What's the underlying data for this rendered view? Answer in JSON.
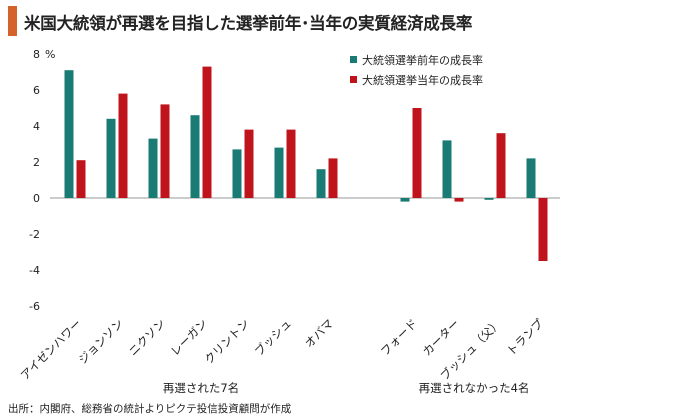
{
  "title": "米国大統領が再選を目指した選挙前年･当年の実質経済成長率",
  "accent_color": "#d4622a",
  "source": "出所：内閣府、総務省の統計よりピクテ投信投資顧問が作成",
  "chart_data": {
    "type": "bar",
    "y_unit_label": "%",
    "ylim": [
      -6,
      8
    ],
    "yticks": [
      -6,
      -4,
      -2,
      0,
      2,
      4,
      6,
      8
    ],
    "ytick_labels": [
      "-6",
      "-4",
      "-2",
      "0",
      "2",
      "4",
      "6",
      "8"
    ],
    "grid": false,
    "legend_position": "top-right",
    "categories": [
      "アイゼンハワー",
      "ジョンソン",
      "ニクソン",
      "レーガン",
      "クリントン",
      "ブッシュ",
      "オバマ",
      "フォード",
      "カーター",
      "ブッシュ（父）",
      "トランプ"
    ],
    "groups": [
      {
        "label": "再選された7名",
        "categories": [
          "アイゼンハワー",
          "ジョンソン",
          "ニクソン",
          "レーガン",
          "クリントン",
          "ブッシュ",
          "オバマ"
        ]
      },
      {
        "label": "再選されなかった4名",
        "categories": [
          "フォード",
          "カーター",
          "ブッシュ（父）",
          "トランプ"
        ]
      }
    ],
    "series": [
      {
        "name": "大統領選挙前年の成長率",
        "color": "#1a7a74",
        "values": [
          7.1,
          4.4,
          3.3,
          4.6,
          2.7,
          2.8,
          1.6,
          -0.2,
          3.2,
          -0.1,
          2.2
        ]
      },
      {
        "name": "大統領選挙当年の成長率",
        "color": "#c0141c",
        "values": [
          2.1,
          5.8,
          5.2,
          7.3,
          3.8,
          3.8,
          2.2,
          5.0,
          -0.2,
          3.6,
          -3.5
        ]
      }
    ]
  }
}
